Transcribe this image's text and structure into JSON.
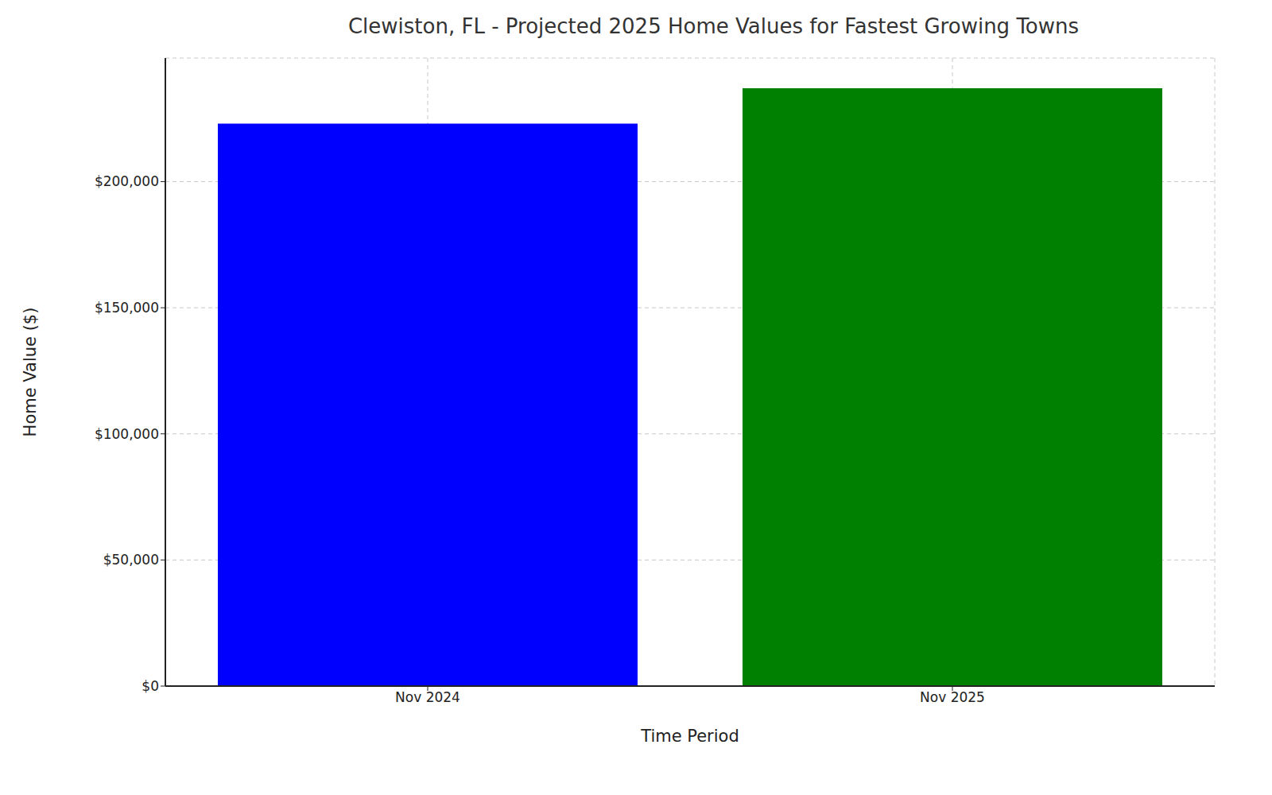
{
  "chart_data": {
    "type": "bar",
    "title": "Clewiston, FL - Projected 2025 Home Values for Fastest Growing Towns",
    "x_label": "Time Period",
    "y_label": "Home Value ($)",
    "categories": [
      "Nov 2024",
      "Nov 2025"
    ],
    "values": [
      223000,
      237000
    ],
    "colors": [
      "#0000ff",
      "#008000"
    ],
    "ylim": [
      0,
      249000
    ],
    "yticks": [
      {
        "value": 0,
        "label": "$0"
      },
      {
        "value": 50000,
        "label": "$50,000"
      },
      {
        "value": 100000,
        "label": "$100,000"
      },
      {
        "value": 150000,
        "label": "$150,000"
      },
      {
        "value": 200000,
        "label": "$200,000"
      }
    ],
    "grid": true
  }
}
